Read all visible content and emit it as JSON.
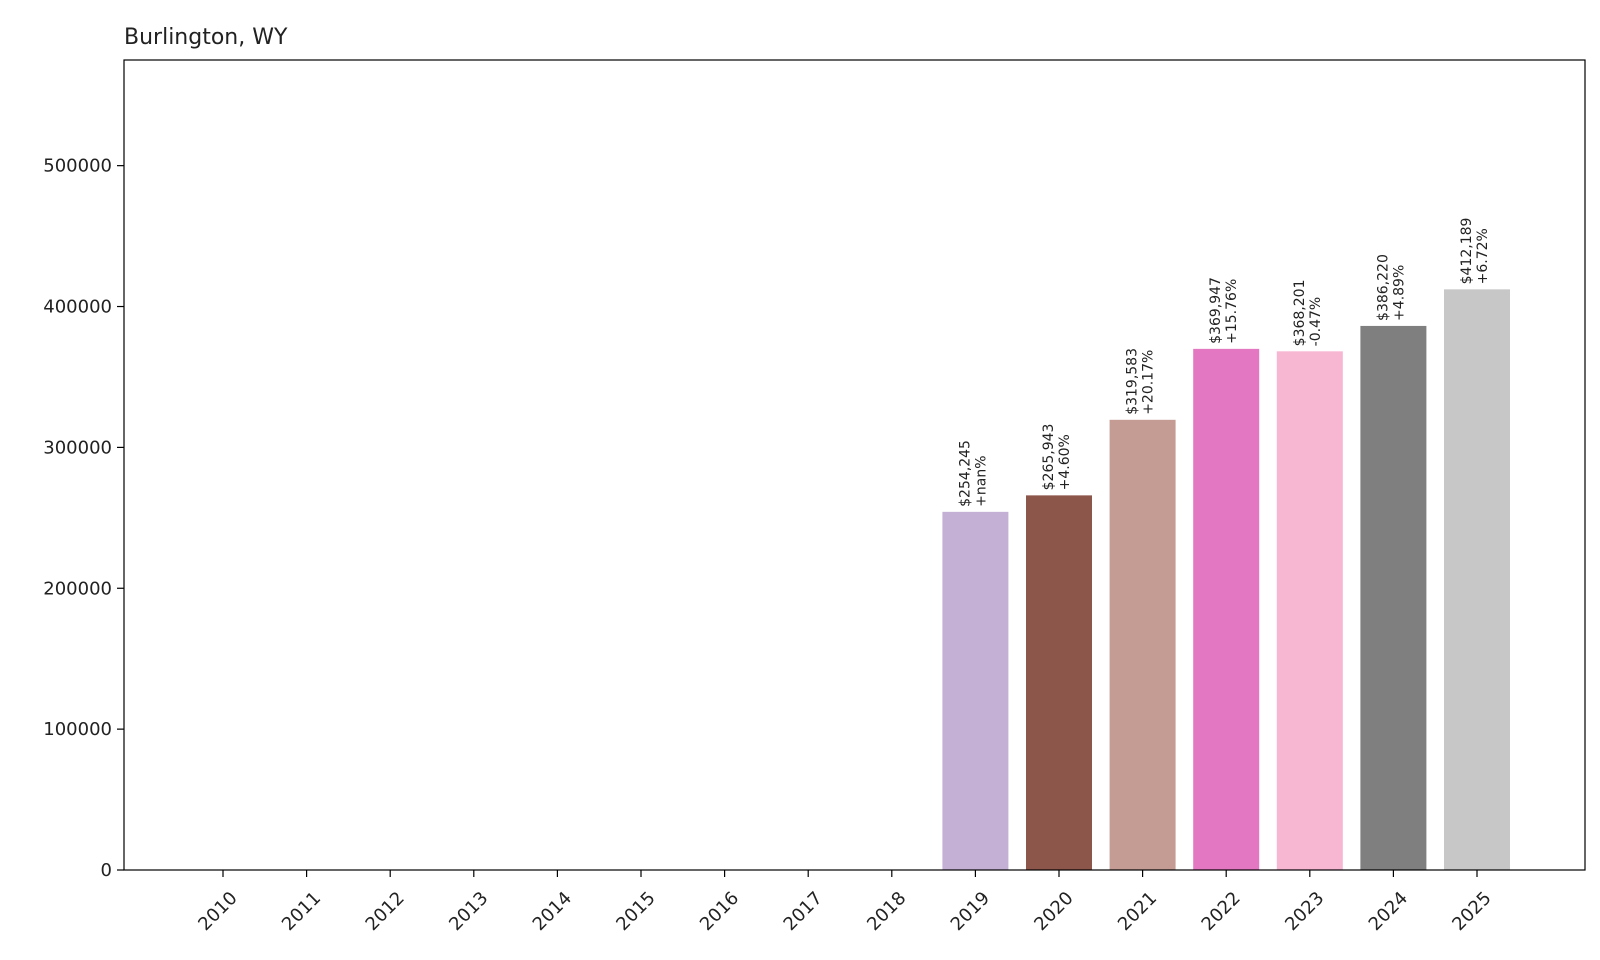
{
  "chart_data": {
    "type": "bar",
    "title": "Burlington, WY",
    "xlabel": "",
    "ylabel": "",
    "categories": [
      "2010",
      "2011",
      "2012",
      "2013",
      "2014",
      "2015",
      "2016",
      "2017",
      "2018",
      "2019",
      "2020",
      "2021",
      "2022",
      "2023",
      "2024",
      "2025"
    ],
    "values": [
      0,
      0,
      0,
      0,
      0,
      0,
      0,
      0,
      0,
      254245,
      265943,
      319583,
      369947,
      368201,
      386220,
      412189
    ],
    "value_labels": [
      "",
      "",
      "",
      "",
      "",
      "",
      "",
      "",
      "",
      "$254,245",
      "$265,943",
      "$319,583",
      "$369,947",
      "$368,201",
      "$386,220",
      "$412,189"
    ],
    "change_labels": [
      "",
      "",
      "",
      "",
      "",
      "",
      "",
      "",
      "",
      "+nan%",
      "+4.60%",
      "+20.17%",
      "+15.76%",
      "-0.47%",
      "+4.89%",
      "+6.72%"
    ],
    "colors": [
      "#1f77b4",
      "#ff7f0e",
      "#2ca02c",
      "#d62728",
      "#9467bd",
      "#8c564b",
      "#e377c2",
      "#7f7f7f",
      "#bcbd22",
      "#c5b0d5",
      "#8c564b",
      "#c49c94",
      "#e377c2",
      "#f7b6d2",
      "#7f7f7f",
      "#c7c7c7"
    ],
    "ylim": [
      0,
      575000
    ],
    "yticks": [
      0,
      100000,
      200000,
      300000,
      400000,
      500000
    ],
    "ytick_labels": [
      "0",
      "100000",
      "200000",
      "300000",
      "400000",
      "500000"
    ],
    "grid": false,
    "legend": "none"
  }
}
